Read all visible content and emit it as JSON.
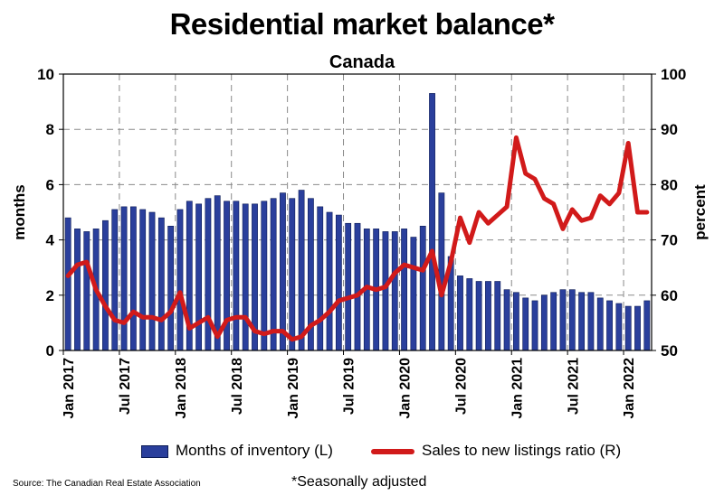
{
  "chart_data": {
    "type": "bar",
    "title": "Residential market balance*",
    "subtitle": "Canada",
    "ylabel_left": "months",
    "ylabel_right": "percent",
    "ylim_left": [
      0,
      10
    ],
    "ylim_right": [
      50,
      100
    ],
    "yticks_left": [
      "0",
      "2",
      "4",
      "6",
      "8",
      "10"
    ],
    "yticks_right": [
      "50",
      "60",
      "70",
      "80",
      "90",
      "100"
    ],
    "x_tick_labels": [
      "Jan 2017",
      "Jul 2017",
      "Jan 2018",
      "Jul 2018",
      "Jan 2019",
      "Jul 2019",
      "Jan 2020",
      "Jul 2020",
      "Jan 2021",
      "Jul 2021",
      "Jan 2022"
    ],
    "grid": true,
    "legend_position": "bottom",
    "x": [
      "2017-01",
      "2017-02",
      "2017-03",
      "2017-04",
      "2017-05",
      "2017-06",
      "2017-07",
      "2017-08",
      "2017-09",
      "2017-10",
      "2017-11",
      "2017-12",
      "2018-01",
      "2018-02",
      "2018-03",
      "2018-04",
      "2018-05",
      "2018-06",
      "2018-07",
      "2018-08",
      "2018-09",
      "2018-10",
      "2018-11",
      "2018-12",
      "2019-01",
      "2019-02",
      "2019-03",
      "2019-04",
      "2019-05",
      "2019-06",
      "2019-07",
      "2019-08",
      "2019-09",
      "2019-10",
      "2019-11",
      "2019-12",
      "2020-01",
      "2020-02",
      "2020-03",
      "2020-04",
      "2020-05",
      "2020-06",
      "2020-07",
      "2020-08",
      "2020-09",
      "2020-10",
      "2020-11",
      "2020-12",
      "2021-01",
      "2021-02",
      "2021-03",
      "2021-04",
      "2021-05",
      "2021-06",
      "2021-07",
      "2021-08",
      "2021-09",
      "2021-10",
      "2021-11",
      "2021-12",
      "2022-01",
      "2022-02",
      "2022-03"
    ],
    "series": [
      {
        "name": "Months of inventory (L)",
        "type": "bar",
        "axis": "left",
        "color": "#2a3f9c",
        "values": [
          4.8,
          4.4,
          4.3,
          4.4,
          4.7,
          5.1,
          5.2,
          5.2,
          5.1,
          5.0,
          4.8,
          4.5,
          5.1,
          5.4,
          5.3,
          5.5,
          5.6,
          5.4,
          5.4,
          5.3,
          5.3,
          5.4,
          5.5,
          5.7,
          5.5,
          5.8,
          5.5,
          5.2,
          5.0,
          4.9,
          4.6,
          4.6,
          4.4,
          4.4,
          4.3,
          4.3,
          4.4,
          4.1,
          4.5,
          9.3,
          5.7,
          3.4,
          2.7,
          2.6,
          2.5,
          2.5,
          2.5,
          2.2,
          2.1,
          1.9,
          1.8,
          2.0,
          2.1,
          2.2,
          2.2,
          2.1,
          2.1,
          1.9,
          1.8,
          1.7,
          1.6,
          1.6,
          1.8
        ]
      },
      {
        "name": "Sales to new listings ratio (R)",
        "type": "line",
        "axis": "right",
        "color": "#d11a1a",
        "values": [
          63.5,
          65.5,
          66.0,
          61.0,
          58.0,
          55.5,
          55.0,
          57.0,
          56.0,
          56.0,
          55.5,
          57.0,
          60.5,
          54.0,
          55.0,
          56.0,
          52.5,
          55.5,
          56.0,
          56.0,
          53.5,
          53.0,
          53.5,
          53.5,
          52.0,
          52.5,
          54.5,
          55.5,
          57.0,
          59.0,
          59.5,
          60.0,
          61.5,
          61.0,
          61.5,
          64.0,
          65.5,
          65.0,
          64.5,
          68.0,
          60.0,
          66.0,
          74.0,
          69.5,
          75.0,
          73.0,
          74.5,
          76.0,
          88.5,
          82.0,
          81.0,
          77.5,
          76.5,
          72.0,
          75.5,
          73.5,
          74.0,
          78.0,
          76.5,
          78.5,
          87.5,
          75.0,
          75.0
        ]
      }
    ]
  },
  "footer": {
    "source": "Source: The Canadian Real Estate Association",
    "note": "*Seasonally adjusted"
  }
}
